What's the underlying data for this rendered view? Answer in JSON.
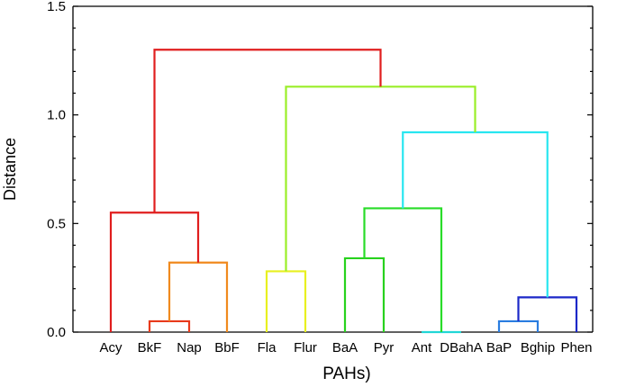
{
  "chart_data": {
    "type": "dendrogram",
    "xlabel": "PAHs)",
    "ylabel": "Distance",
    "ylim": [
      0,
      1.5
    ],
    "yticks": [
      "0.0",
      "0.5",
      "1.0",
      "1.5"
    ],
    "ytick_values": [
      0,
      0.5,
      1.0,
      1.5
    ],
    "leaves": [
      "Acy",
      "BkF",
      "Nap",
      "BbF",
      "Fla",
      "Flur",
      "BaA",
      "Pyr",
      "Ant",
      "DBahA",
      "BaP",
      "Bghip",
      "Phen"
    ],
    "merges": [
      {
        "left": "BkF",
        "right": "Nap",
        "height": 0.05,
        "color": "#e83a1c"
      },
      {
        "left": "BaP",
        "right": "Bghip",
        "height": 0.05,
        "color": "#2a7de0"
      },
      {
        "left": "Ant",
        "right": "DBahA",
        "height": 0.0,
        "color": "#21d6d6"
      },
      {
        "left": "{BaP,Bghip}",
        "right": "Phen",
        "height": 0.16,
        "color": "#1c28c8"
      },
      {
        "left": "Fla",
        "right": "Flur",
        "height": 0.28,
        "color": "#e8f020"
      },
      {
        "left": "{BkF,Nap}",
        "right": "BbF",
        "height": 0.32,
        "color": "#f08a1e"
      },
      {
        "left": "BaA",
        "right": "Pyr",
        "height": 0.34,
        "color": "#28d21e"
      },
      {
        "left": "Acy",
        "right": "{BkF,Nap,BbF}",
        "height": 0.55,
        "color": "#e01e1e"
      },
      {
        "left": "{BaA,Pyr}",
        "right": "{Ant,DBahA}",
        "height": 0.57,
        "color": "#28dc28"
      },
      {
        "left": "{BaA,Pyr,Ant,DBahA}",
        "right": "{BaP,Bghip,Phen}",
        "height": 0.92,
        "color": "#28e6f0"
      },
      {
        "left": "{Fla,Flur}",
        "right": "{BaA..Phen}",
        "height": 1.13,
        "color": "#9aee28"
      },
      {
        "left": "{Acy..BbF}",
        "right": "{Fla..Phen}",
        "height": 1.3,
        "color": "#e01e1e"
      }
    ]
  }
}
